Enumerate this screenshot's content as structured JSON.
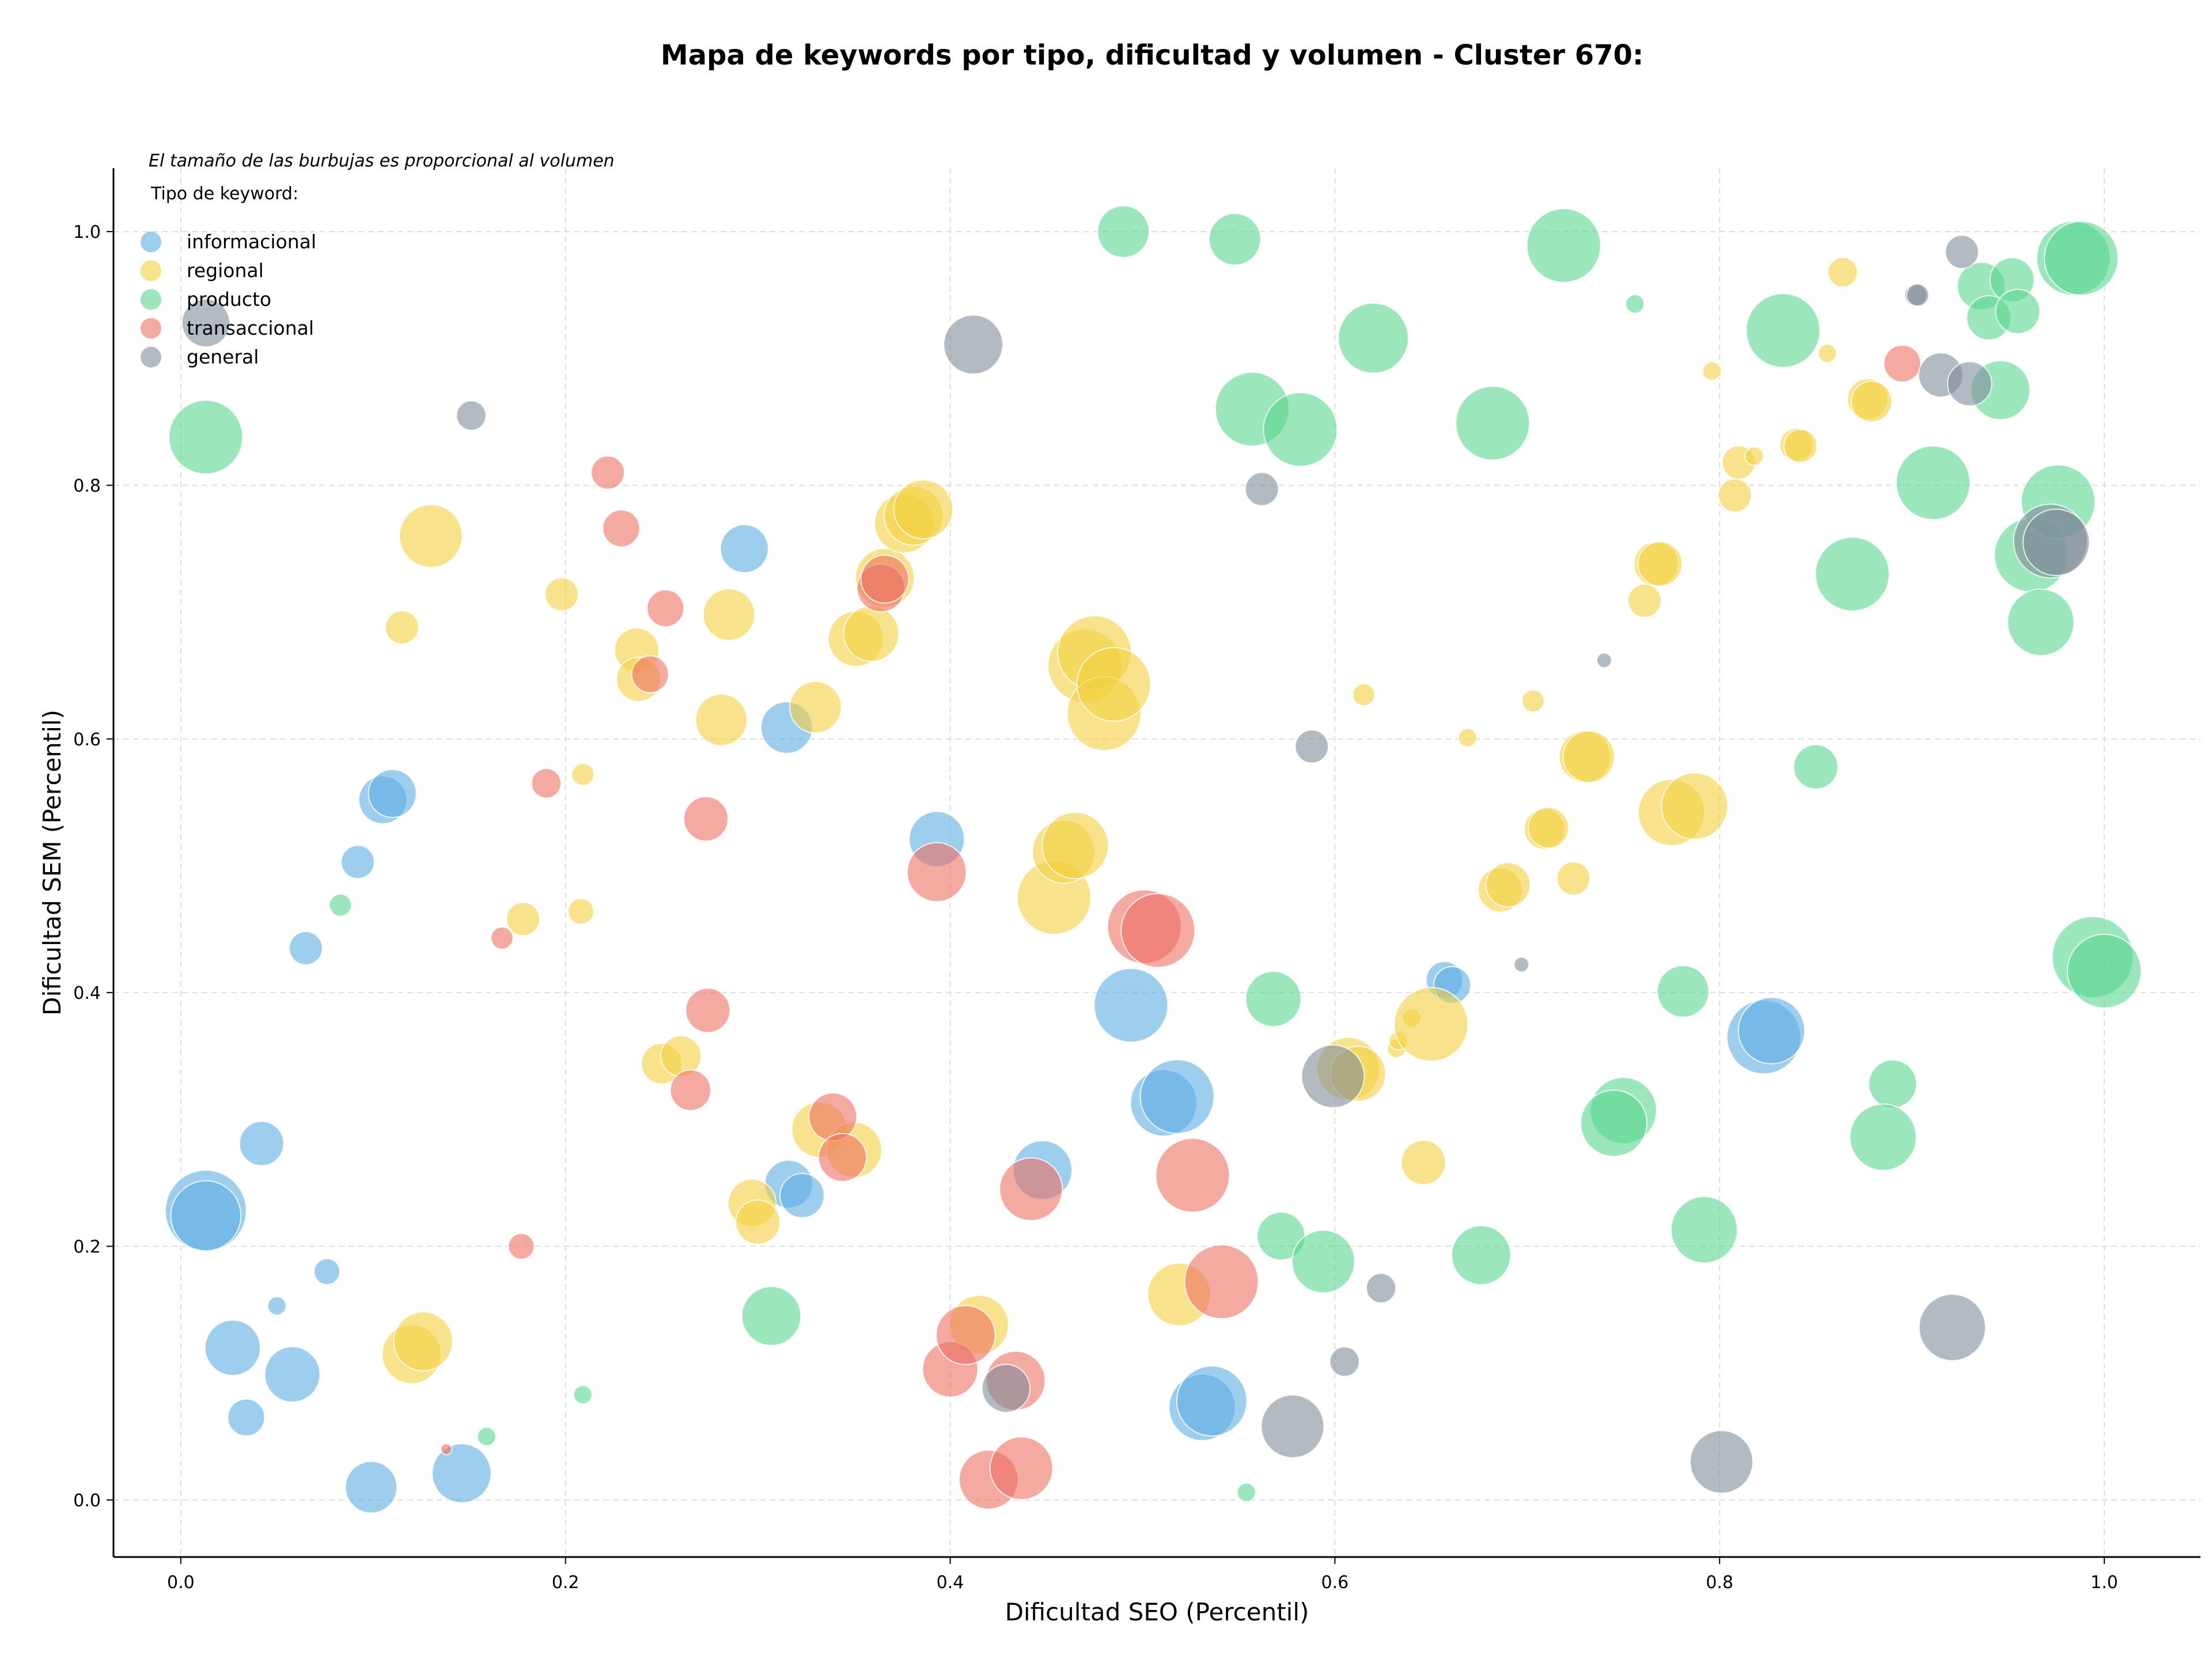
{
  "chart_data": {
    "type": "scatter",
    "title": "Mapa de keywords por tipo, dificultad y volumen - Cluster 670:",
    "xlabel": "Dificultad SEO (Percentil)",
    "ylabel": "Dificultad SEM (Percentil)",
    "xlim": [
      -0.035,
      1.05
    ],
    "ylim": [
      -0.045,
      1.05
    ],
    "xticks": [
      "0.0",
      "0.2",
      "0.4",
      "0.6",
      "0.8",
      "1.0"
    ],
    "yticks": [
      "0.0",
      "0.2",
      "0.4",
      "0.6",
      "0.8",
      "1.0"
    ],
    "grid": true,
    "note": "El tamaño de las burbujas es proporcional al volumen",
    "legend": {
      "title": "Tipo de keyword:",
      "position": "top-left"
    },
    "series": [
      {
        "name": "informacional",
        "color": "#5DADE2",
        "points": [
          [
            0.013,
            0.228,
            2.2
          ],
          [
            0.013,
            0.224,
            1.9
          ],
          [
            0.042,
            0.281,
            1.2
          ],
          [
            0.027,
            0.12,
            1.5
          ],
          [
            0.058,
            0.099,
            1.5
          ],
          [
            0.034,
            0.065,
            1.0
          ],
          [
            0.05,
            0.153,
            0.5
          ],
          [
            0.076,
            0.18,
            0.7
          ],
          [
            0.065,
            0.435,
            0.9
          ],
          [
            0.092,
            0.503,
            0.9
          ],
          [
            0.105,
            0.552,
            1.3
          ],
          [
            0.11,
            0.557,
            1.3
          ],
          [
            0.099,
            0.01,
            1.4
          ],
          [
            0.146,
            0.021,
            1.6
          ],
          [
            0.293,
            0.75,
            1.3
          ],
          [
            0.315,
            0.609,
            1.4
          ],
          [
            0.316,
            0.249,
            1.3
          ],
          [
            0.323,
            0.24,
            1.2
          ],
          [
            0.393,
            0.521,
            1.5
          ],
          [
            0.448,
            0.26,
            1.6
          ],
          [
            0.494,
            0.39,
            2.0
          ],
          [
            0.511,
            0.313,
            1.8
          ],
          [
            0.518,
            0.318,
            2.0
          ],
          [
            0.531,
            0.073,
            1.8
          ],
          [
            0.536,
            0.078,
            1.9
          ],
          [
            0.657,
            0.41,
            1.0
          ],
          [
            0.661,
            0.406,
            1.0
          ],
          [
            0.823,
            0.365,
            2.0
          ],
          [
            0.827,
            0.37,
            1.8
          ]
        ]
      },
      {
        "name": "regional",
        "color": "#F4D03F",
        "points": [
          [
            0.13,
            0.76,
            1.7
          ],
          [
            0.115,
            0.688,
            0.9
          ],
          [
            0.198,
            0.714,
            0.9
          ],
          [
            0.209,
            0.572,
            0.6
          ],
          [
            0.208,
            0.464,
            0.7
          ],
          [
            0.178,
            0.458,
            0.9
          ],
          [
            0.237,
            0.67,
            1.2
          ],
          [
            0.238,
            0.647,
            1.2
          ],
          [
            0.285,
            0.698,
            1.4
          ],
          [
            0.281,
            0.615,
            1.4
          ],
          [
            0.33,
            0.625,
            1.4
          ],
          [
            0.351,
            0.679,
            1.5
          ],
          [
            0.359,
            0.683,
            1.5
          ],
          [
            0.366,
            0.727,
            1.6
          ],
          [
            0.376,
            0.77,
            1.6
          ],
          [
            0.381,
            0.776,
            1.6
          ],
          [
            0.386,
            0.781,
            1.6
          ],
          [
            0.25,
            0.344,
            1.1
          ],
          [
            0.26,
            0.35,
            1.1
          ],
          [
            0.297,
            0.234,
            1.3
          ],
          [
            0.3,
            0.219,
            1.2
          ],
          [
            0.332,
            0.292,
            1.5
          ],
          [
            0.35,
            0.276,
            1.5
          ],
          [
            0.12,
            0.115,
            1.6
          ],
          [
            0.126,
            0.125,
            1.6
          ],
          [
            0.415,
            0.138,
            1.6
          ],
          [
            0.454,
            0.475,
            2.0
          ],
          [
            0.459,
            0.511,
            1.7
          ],
          [
            0.465,
            0.516,
            1.8
          ],
          [
            0.47,
            0.658,
            2.0
          ],
          [
            0.475,
            0.668,
            2.0
          ],
          [
            0.48,
            0.62,
            2.0
          ],
          [
            0.485,
            0.643,
            2.0
          ],
          [
            0.519,
            0.162,
            1.7
          ],
          [
            0.607,
            0.34,
            1.7
          ],
          [
            0.612,
            0.336,
            1.5
          ],
          [
            0.615,
            0.635,
            0.6
          ],
          [
            0.632,
            0.356,
            0.5
          ],
          [
            0.633,
            0.362,
            0.5
          ],
          [
            0.64,
            0.38,
            0.5
          ],
          [
            0.65,
            0.375,
            2.0
          ],
          [
            0.646,
            0.266,
            1.2
          ],
          [
            0.669,
            0.601,
            0.5
          ],
          [
            0.686,
            0.481,
            1.2
          ],
          [
            0.69,
            0.485,
            1.2
          ],
          [
            0.703,
            0.63,
            0.6
          ],
          [
            0.709,
            0.529,
            1.1
          ],
          [
            0.711,
            0.53,
            1.1
          ],
          [
            0.724,
            0.49,
            0.9
          ],
          [
            0.73,
            0.586,
            1.4
          ],
          [
            0.732,
            0.586,
            1.4
          ],
          [
            0.761,
            0.709,
            0.9
          ],
          [
            0.767,
            0.738,
            1.2
          ],
          [
            0.769,
            0.738,
            1.2
          ],
          [
            0.775,
            0.542,
            1.8
          ],
          [
            0.787,
            0.547,
            1.8
          ],
          [
            0.796,
            0.89,
            0.5
          ],
          [
            0.808,
            0.792,
            0.9
          ],
          [
            0.81,
            0.818,
            0.9
          ],
          [
            0.818,
            0.823,
            0.5
          ],
          [
            0.84,
            0.832,
            0.9
          ],
          [
            0.842,
            0.831,
            0.9
          ],
          [
            0.856,
            0.904,
            0.5
          ],
          [
            0.864,
            0.968,
            0.8
          ],
          [
            0.877,
            0.868,
            1.1
          ],
          [
            0.879,
            0.866,
            1.1
          ]
        ]
      },
      {
        "name": "producto",
        "color": "#58D68D",
        "points": [
          [
            0.013,
            0.838,
            2.0
          ],
          [
            0.083,
            0.469,
            0.6
          ],
          [
            0.209,
            0.083,
            0.5
          ],
          [
            0.159,
            0.05,
            0.5
          ],
          [
            0.307,
            0.145,
            1.6
          ],
          [
            0.49,
            1.0,
            1.4
          ],
          [
            0.548,
            0.994,
            1.4
          ],
          [
            0.557,
            0.86,
            2.0
          ],
          [
            0.582,
            0.844,
            2.0
          ],
          [
            0.62,
            0.916,
            1.9
          ],
          [
            0.682,
            0.849,
            2.0
          ],
          [
            0.719,
            0.989,
            2.0
          ],
          [
            0.756,
            0.943,
            0.5
          ],
          [
            0.568,
            0.395,
            1.5
          ],
          [
            0.572,
            0.208,
            1.3
          ],
          [
            0.594,
            0.188,
            1.7
          ],
          [
            0.554,
            0.006,
            0.5
          ],
          [
            0.676,
            0.193,
            1.6
          ],
          [
            0.75,
            0.307,
            1.8
          ],
          [
            0.745,
            0.297,
            1.8
          ],
          [
            0.781,
            0.401,
            1.4
          ],
          [
            0.792,
            0.213,
            1.8
          ],
          [
            0.833,
            0.922,
            2.0
          ],
          [
            0.869,
            0.73,
            2.0
          ],
          [
            0.911,
            0.802,
            2.0
          ],
          [
            0.85,
            0.578,
            1.2
          ],
          [
            0.89,
            0.328,
            1.3
          ],
          [
            0.885,
            0.286,
            1.8
          ],
          [
            0.936,
            0.957,
            1.3
          ],
          [
            0.94,
            0.932,
            1.2
          ],
          [
            0.946,
            0.875,
            1.6
          ],
          [
            0.952,
            0.962,
            1.2
          ],
          [
            0.955,
            0.937,
            1.2
          ],
          [
            0.962,
            0.745,
            2.0
          ],
          [
            0.967,
            0.692,
            1.8
          ],
          [
            0.976,
            0.787,
            2.0
          ],
          [
            0.984,
            0.979,
            2.0
          ],
          [
            0.988,
            0.979,
            2.0
          ],
          [
            0.994,
            0.428,
            2.2
          ],
          [
            1.0,
            0.417,
            2.0
          ]
        ]
      },
      {
        "name": "transaccional",
        "color": "#EC7063",
        "points": [
          [
            0.222,
            0.81,
            0.9
          ],
          [
            0.19,
            0.565,
            0.8
          ],
          [
            0.229,
            0.766,
            1.0
          ],
          [
            0.252,
            0.703,
            1.0
          ],
          [
            0.244,
            0.651,
            1.0
          ],
          [
            0.167,
            0.443,
            0.6
          ],
          [
            0.177,
            0.2,
            0.7
          ],
          [
            0.138,
            0.04,
            0.3
          ],
          [
            0.273,
            0.537,
            1.2
          ],
          [
            0.274,
            0.386,
            1.2
          ],
          [
            0.265,
            0.323,
            1.1
          ],
          [
            0.339,
            0.302,
            1.3
          ],
          [
            0.344,
            0.27,
            1.3
          ],
          [
            0.364,
            0.719,
            1.3
          ],
          [
            0.366,
            0.726,
            1.3
          ],
          [
            0.393,
            0.495,
            1.6
          ],
          [
            0.4,
            0.103,
            1.5
          ],
          [
            0.408,
            0.13,
            1.6
          ],
          [
            0.42,
            0.016,
            1.6
          ],
          [
            0.437,
            0.025,
            1.7
          ],
          [
            0.434,
            0.094,
            1.6
          ],
          [
            0.442,
            0.245,
            1.7
          ],
          [
            0.501,
            0.452,
            2.0
          ],
          [
            0.508,
            0.449,
            2.0
          ],
          [
            0.526,
            0.256,
            2.0
          ],
          [
            0.541,
            0.172,
            2.0
          ],
          [
            0.895,
            0.896,
            1.0
          ]
        ]
      },
      {
        "name": "general",
        "color": "#7F8C9A",
        "points": [
          [
            0.013,
            0.928,
            1.3
          ],
          [
            0.151,
            0.855,
            0.8
          ],
          [
            0.412,
            0.911,
            1.6
          ],
          [
            0.562,
            0.797,
            0.9
          ],
          [
            0.588,
            0.594,
            0.9
          ],
          [
            0.599,
            0.334,
            1.7
          ],
          [
            0.624,
            0.167,
            0.8
          ],
          [
            0.605,
            0.109,
            0.8
          ],
          [
            0.578,
            0.058,
            1.7
          ],
          [
            0.429,
            0.088,
            1.3
          ],
          [
            0.697,
            0.422,
            0.4
          ],
          [
            0.74,
            0.662,
            0.4
          ],
          [
            0.801,
            0.03,
            1.7
          ],
          [
            0.921,
            0.136,
            1.8
          ],
          [
            0.902,
            0.95,
            0.6
          ],
          [
            0.903,
            0.95,
            0.6
          ],
          [
            0.915,
            0.887,
            1.2
          ],
          [
            0.926,
            0.984,
            0.9
          ],
          [
            0.93,
            0.88,
            1.2
          ],
          [
            0.972,
            0.756,
            2.0
          ],
          [
            0.975,
            0.755,
            1.8
          ]
        ]
      }
    ]
  }
}
